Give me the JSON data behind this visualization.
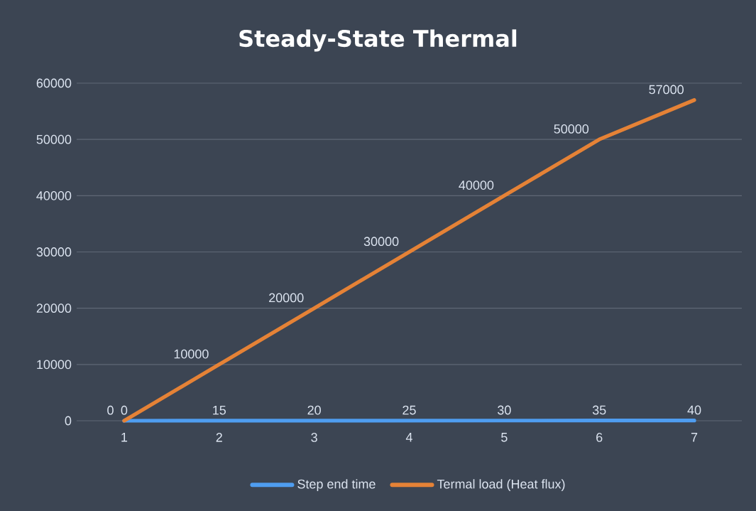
{
  "chart_data": {
    "type": "line",
    "title": "Steady-State Thermal",
    "categories": [
      "1",
      "2",
      "3",
      "4",
      "5",
      "6",
      "7"
    ],
    "series": [
      {
        "name": "Step end time",
        "color": "#4f9df0",
        "values": [
          0,
          15,
          20,
          25,
          30,
          35,
          40
        ]
      },
      {
        "name": "Termal load (Heat flux)",
        "color": "#e58236",
        "values": [
          0,
          10000,
          20000,
          30000,
          40000,
          50000,
          57000
        ]
      }
    ],
    "ylim": [
      0,
      60000
    ],
    "yticks": [
      0,
      10000,
      20000,
      30000,
      40000,
      50000,
      60000
    ],
    "grid": "y",
    "legend": "bottom",
    "data_labels": true,
    "marker": "none",
    "line_style": "solid"
  }
}
